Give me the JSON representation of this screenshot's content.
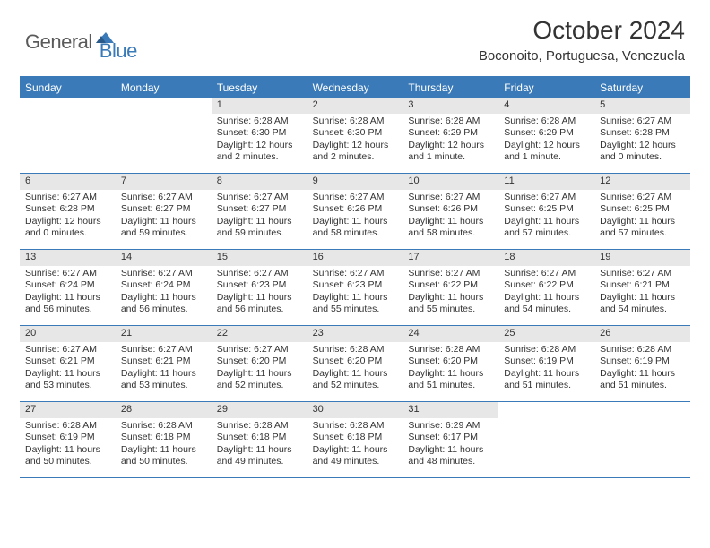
{
  "logo": {
    "part1": "General",
    "part2": "Blue"
  },
  "title": "October 2024",
  "location": "Boconoito, Portuguesa, Venezuela",
  "colors": {
    "accent": "#3a7ab8",
    "header_bg": "#3a7ab8",
    "daynum_bg": "#e7e7e7",
    "text": "#333333",
    "logo_gray": "#5a5a5a",
    "background": "#ffffff"
  },
  "dayHeaders": [
    "Sunday",
    "Monday",
    "Tuesday",
    "Wednesday",
    "Thursday",
    "Friday",
    "Saturday"
  ],
  "weeks": [
    [
      {
        "num": "",
        "sunrise": "",
        "sunset": "",
        "daylight": ""
      },
      {
        "num": "",
        "sunrise": "",
        "sunset": "",
        "daylight": ""
      },
      {
        "num": "1",
        "sunrise": "Sunrise: 6:28 AM",
        "sunset": "Sunset: 6:30 PM",
        "daylight": "Daylight: 12 hours and 2 minutes."
      },
      {
        "num": "2",
        "sunrise": "Sunrise: 6:28 AM",
        "sunset": "Sunset: 6:30 PM",
        "daylight": "Daylight: 12 hours and 2 minutes."
      },
      {
        "num": "3",
        "sunrise": "Sunrise: 6:28 AM",
        "sunset": "Sunset: 6:29 PM",
        "daylight": "Daylight: 12 hours and 1 minute."
      },
      {
        "num": "4",
        "sunrise": "Sunrise: 6:28 AM",
        "sunset": "Sunset: 6:29 PM",
        "daylight": "Daylight: 12 hours and 1 minute."
      },
      {
        "num": "5",
        "sunrise": "Sunrise: 6:27 AM",
        "sunset": "Sunset: 6:28 PM",
        "daylight": "Daylight: 12 hours and 0 minutes."
      }
    ],
    [
      {
        "num": "6",
        "sunrise": "Sunrise: 6:27 AM",
        "sunset": "Sunset: 6:28 PM",
        "daylight": "Daylight: 12 hours and 0 minutes."
      },
      {
        "num": "7",
        "sunrise": "Sunrise: 6:27 AM",
        "sunset": "Sunset: 6:27 PM",
        "daylight": "Daylight: 11 hours and 59 minutes."
      },
      {
        "num": "8",
        "sunrise": "Sunrise: 6:27 AM",
        "sunset": "Sunset: 6:27 PM",
        "daylight": "Daylight: 11 hours and 59 minutes."
      },
      {
        "num": "9",
        "sunrise": "Sunrise: 6:27 AM",
        "sunset": "Sunset: 6:26 PM",
        "daylight": "Daylight: 11 hours and 58 minutes."
      },
      {
        "num": "10",
        "sunrise": "Sunrise: 6:27 AM",
        "sunset": "Sunset: 6:26 PM",
        "daylight": "Daylight: 11 hours and 58 minutes."
      },
      {
        "num": "11",
        "sunrise": "Sunrise: 6:27 AM",
        "sunset": "Sunset: 6:25 PM",
        "daylight": "Daylight: 11 hours and 57 minutes."
      },
      {
        "num": "12",
        "sunrise": "Sunrise: 6:27 AM",
        "sunset": "Sunset: 6:25 PM",
        "daylight": "Daylight: 11 hours and 57 minutes."
      }
    ],
    [
      {
        "num": "13",
        "sunrise": "Sunrise: 6:27 AM",
        "sunset": "Sunset: 6:24 PM",
        "daylight": "Daylight: 11 hours and 56 minutes."
      },
      {
        "num": "14",
        "sunrise": "Sunrise: 6:27 AM",
        "sunset": "Sunset: 6:24 PM",
        "daylight": "Daylight: 11 hours and 56 minutes."
      },
      {
        "num": "15",
        "sunrise": "Sunrise: 6:27 AM",
        "sunset": "Sunset: 6:23 PM",
        "daylight": "Daylight: 11 hours and 56 minutes."
      },
      {
        "num": "16",
        "sunrise": "Sunrise: 6:27 AM",
        "sunset": "Sunset: 6:23 PM",
        "daylight": "Daylight: 11 hours and 55 minutes."
      },
      {
        "num": "17",
        "sunrise": "Sunrise: 6:27 AM",
        "sunset": "Sunset: 6:22 PM",
        "daylight": "Daylight: 11 hours and 55 minutes."
      },
      {
        "num": "18",
        "sunrise": "Sunrise: 6:27 AM",
        "sunset": "Sunset: 6:22 PM",
        "daylight": "Daylight: 11 hours and 54 minutes."
      },
      {
        "num": "19",
        "sunrise": "Sunrise: 6:27 AM",
        "sunset": "Sunset: 6:21 PM",
        "daylight": "Daylight: 11 hours and 54 minutes."
      }
    ],
    [
      {
        "num": "20",
        "sunrise": "Sunrise: 6:27 AM",
        "sunset": "Sunset: 6:21 PM",
        "daylight": "Daylight: 11 hours and 53 minutes."
      },
      {
        "num": "21",
        "sunrise": "Sunrise: 6:27 AM",
        "sunset": "Sunset: 6:21 PM",
        "daylight": "Daylight: 11 hours and 53 minutes."
      },
      {
        "num": "22",
        "sunrise": "Sunrise: 6:27 AM",
        "sunset": "Sunset: 6:20 PM",
        "daylight": "Daylight: 11 hours and 52 minutes."
      },
      {
        "num": "23",
        "sunrise": "Sunrise: 6:28 AM",
        "sunset": "Sunset: 6:20 PM",
        "daylight": "Daylight: 11 hours and 52 minutes."
      },
      {
        "num": "24",
        "sunrise": "Sunrise: 6:28 AM",
        "sunset": "Sunset: 6:20 PM",
        "daylight": "Daylight: 11 hours and 51 minutes."
      },
      {
        "num": "25",
        "sunrise": "Sunrise: 6:28 AM",
        "sunset": "Sunset: 6:19 PM",
        "daylight": "Daylight: 11 hours and 51 minutes."
      },
      {
        "num": "26",
        "sunrise": "Sunrise: 6:28 AM",
        "sunset": "Sunset: 6:19 PM",
        "daylight": "Daylight: 11 hours and 51 minutes."
      }
    ],
    [
      {
        "num": "27",
        "sunrise": "Sunrise: 6:28 AM",
        "sunset": "Sunset: 6:19 PM",
        "daylight": "Daylight: 11 hours and 50 minutes."
      },
      {
        "num": "28",
        "sunrise": "Sunrise: 6:28 AM",
        "sunset": "Sunset: 6:18 PM",
        "daylight": "Daylight: 11 hours and 50 minutes."
      },
      {
        "num": "29",
        "sunrise": "Sunrise: 6:28 AM",
        "sunset": "Sunset: 6:18 PM",
        "daylight": "Daylight: 11 hours and 49 minutes."
      },
      {
        "num": "30",
        "sunrise": "Sunrise: 6:28 AM",
        "sunset": "Sunset: 6:18 PM",
        "daylight": "Daylight: 11 hours and 49 minutes."
      },
      {
        "num": "31",
        "sunrise": "Sunrise: 6:29 AM",
        "sunset": "Sunset: 6:17 PM",
        "daylight": "Daylight: 11 hours and 48 minutes."
      },
      {
        "num": "",
        "sunrise": "",
        "sunset": "",
        "daylight": ""
      },
      {
        "num": "",
        "sunrise": "",
        "sunset": "",
        "daylight": ""
      }
    ]
  ]
}
